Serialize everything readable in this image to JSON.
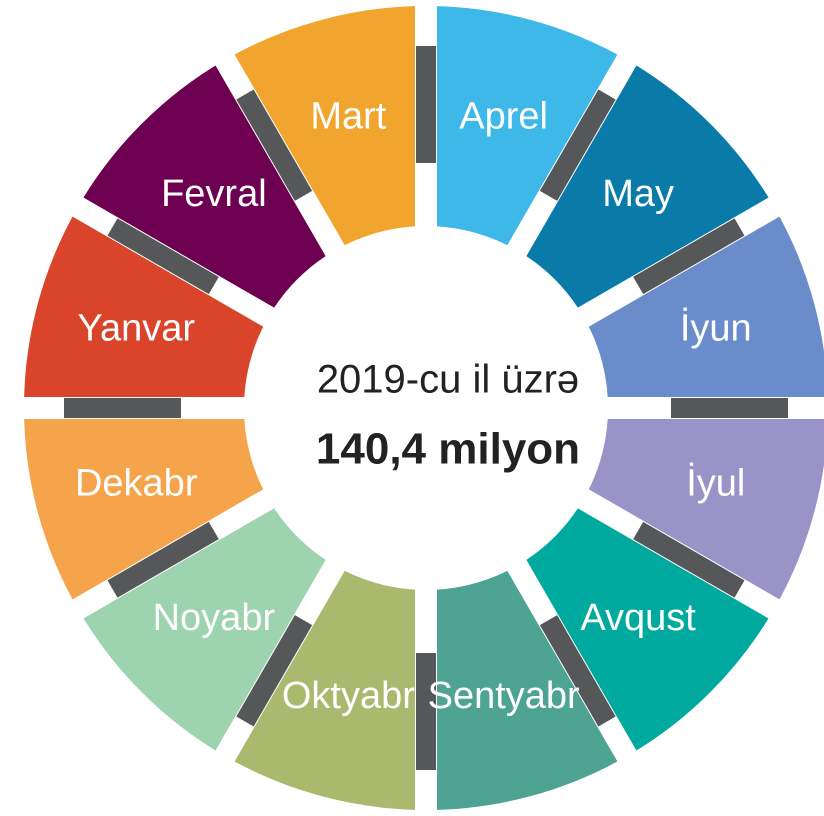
{
  "center": {
    "line1": "2019-cu il üzrə",
    "line2": "140,4 milyon"
  },
  "segments": [
    {
      "label": "Aprel",
      "color": "#3db8e8"
    },
    {
      "label": "May",
      "color": "#0a7aa8"
    },
    {
      "label": "İyun",
      "color": "#6b8ccb"
    },
    {
      "label": "İyul",
      "color": "#9a93c7"
    },
    {
      "label": "Avqust",
      "color": "#00a99d"
    },
    {
      "label": "Sentyabr",
      "color": "#4ea393"
    },
    {
      "label": "Oktyabr",
      "color": "#abb96e"
    },
    {
      "label": "Noyabr",
      "color": "#9dd3ae"
    },
    {
      "label": "Dekabr",
      "color": "#f6a44b"
    },
    {
      "label": "Yanvar",
      "color": "#d9442a"
    },
    {
      "label": "Fevral",
      "color": "#6d0050"
    },
    {
      "label": "Mart",
      "color": "#f2a52e"
    }
  ]
}
